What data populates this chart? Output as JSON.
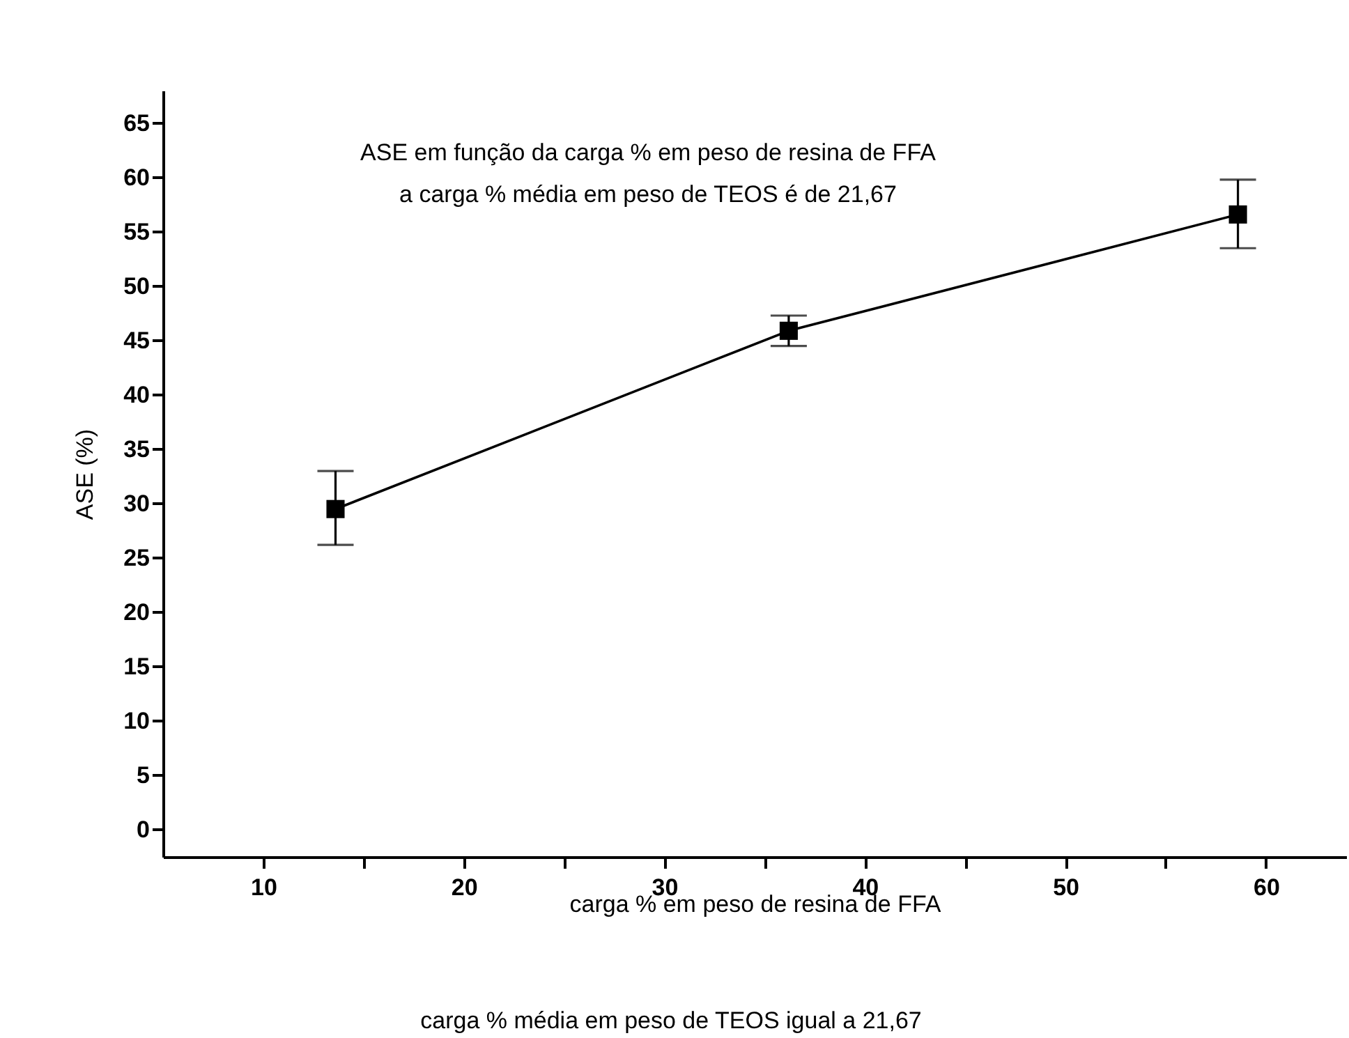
{
  "chart_data": {
    "type": "line",
    "title": "ASE em função da carga % em peso de resina de FFA",
    "subtitle": "a carga % média em peso de TEOS é de 21,67",
    "xlabel": "carga % em peso de resina de FFA",
    "ylabel": "ASE (%)",
    "annotations": [
      "carga % média em peso de TEOS igual a 21,67"
    ],
    "x": [
      13.6,
      36.2,
      58.6
    ],
    "series": [
      {
        "color": "#000000",
        "values": [
          29.5,
          45.9,
          56.6
        ],
        "errors": [
          [
            26.2,
            33.0
          ],
          [
            44.5,
            47.3
          ],
          [
            53.5,
            59.8
          ]
        ]
      }
    ],
    "marker": "square",
    "xlim": [
      5,
      64
    ],
    "ylim": [
      -2.5,
      68
    ],
    "xticks": [
      10,
      {
        "value": 15,
        "label": null
      },
      20,
      {
        "value": 25,
        "label": null
      },
      30,
      {
        "value": 35,
        "label": null
      },
      40,
      {
        "value": 45,
        "label": null
      },
      50,
      {
        "value": 55,
        "label": null
      },
      60
    ],
    "yticks": [
      0,
      5,
      10,
      15,
      20,
      25,
      30,
      35,
      40,
      45,
      50,
      55,
      60,
      65
    ],
    "grid": false
  }
}
